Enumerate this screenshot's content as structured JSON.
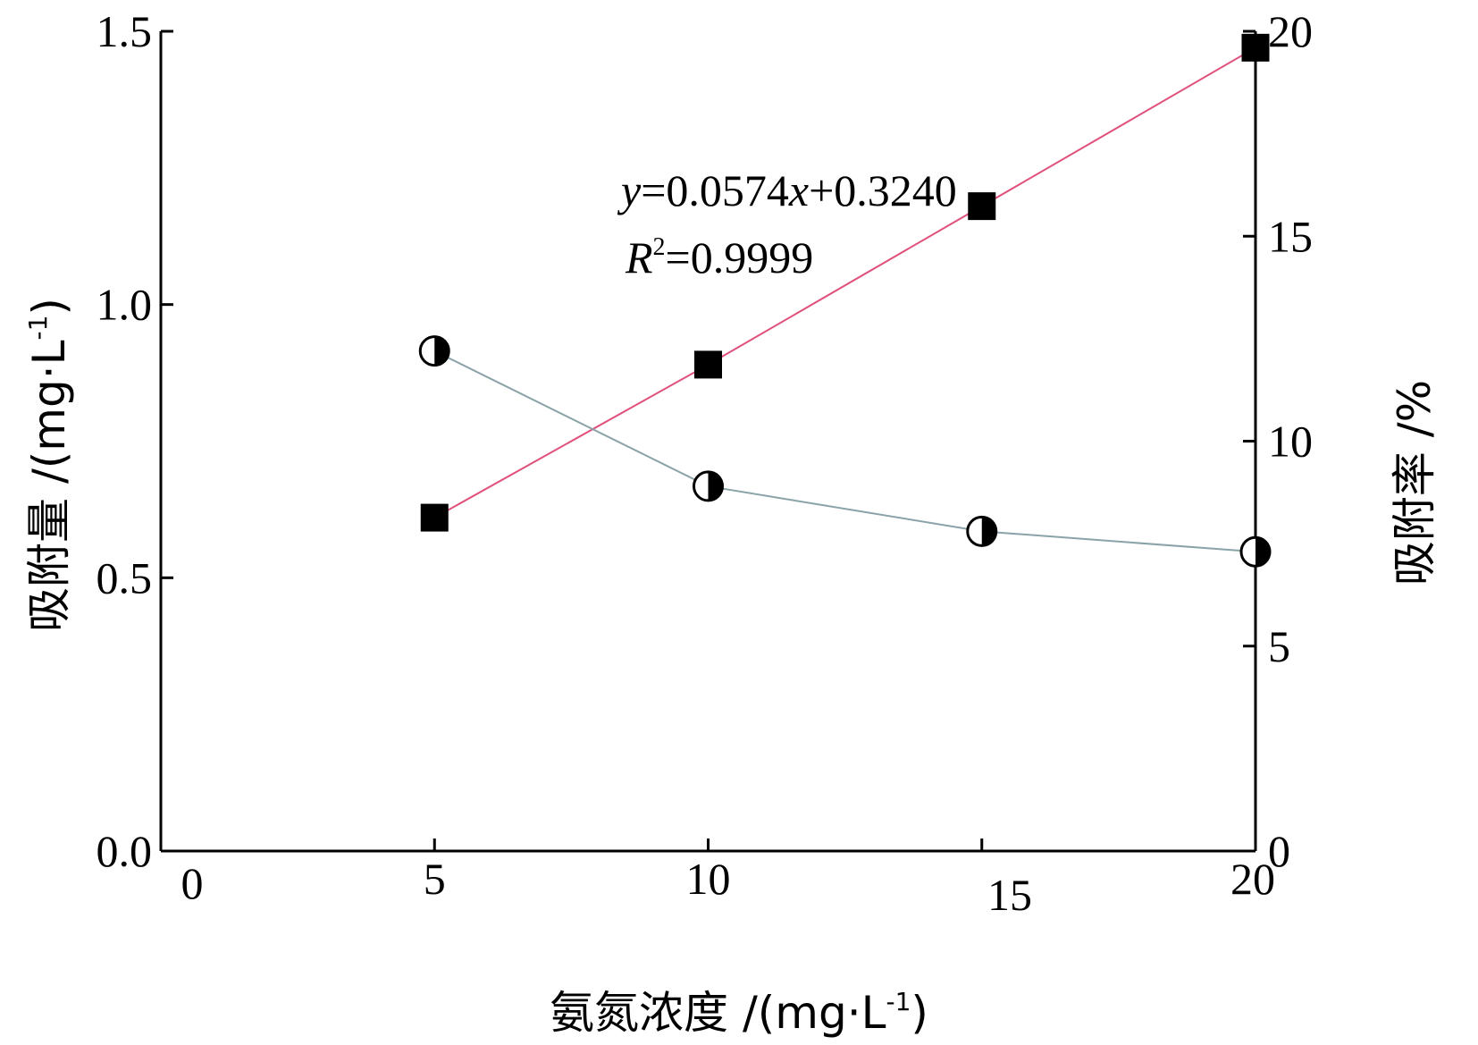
{
  "chart_data": {
    "type": "line",
    "xlabel": "氨氮浓度 /(mg·L",
    "xlabel_sup": "-1",
    "xlabel_tail": ")",
    "ylabel_left": "吸附量 /(mg·L",
    "ylabel_left_sup": "-1",
    "ylabel_left_tail": ")",
    "ylabel_right": "吸附率 /%",
    "xlim": [
      0,
      20
    ],
    "ylim_left": [
      0,
      1.5
    ],
    "ylim_right": [
      0,
      20
    ],
    "x_ticks": [
      "0",
      "5",
      "10",
      "15",
      "20"
    ],
    "y_left_ticks": [
      "0.0",
      "0.5",
      "1.0",
      "1.5"
    ],
    "y_right_ticks": [
      "0",
      "5",
      "10",
      "15",
      "20"
    ],
    "series": [
      {
        "axis": "left",
        "marker": "square",
        "line_color": "#e0507a",
        "x": [
          5,
          10,
          15,
          20
        ],
        "y": [
          0.61,
          0.89,
          1.18,
          1.47
        ]
      },
      {
        "axis": "right",
        "marker": "half-circle",
        "line_color": "#8aa3a8",
        "x": [
          5,
          10,
          15,
          20
        ],
        "y": [
          12.2,
          8.9,
          7.8,
          7.3
        ]
      }
    ],
    "annotation": {
      "eq_y": "y",
      "eq_rest": "=0.0574",
      "eq_x": "x",
      "eq_tail": "+0.3240",
      "r_letter": "R",
      "r_sup": "2",
      "r_tail": "=0.9999"
    }
  }
}
